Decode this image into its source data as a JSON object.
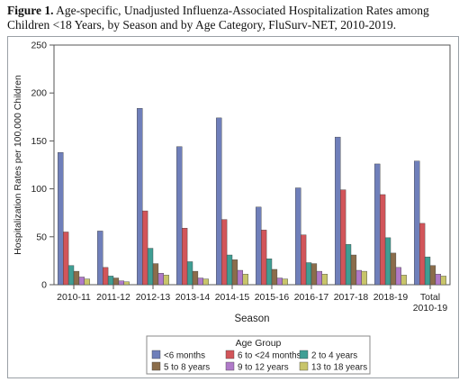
{
  "caption": {
    "label": "Figure 1.",
    "text": "Age-specific, Unadjusted Influenza-Associated Hospitalization Rates among Children <18 Years, by Season and by Age Category, FluSurv-NET, 2010-2019."
  },
  "chart_data": {
    "type": "bar",
    "xlabel": "Season",
    "ylabel": "Hospitalization Rates per 100,000 Children",
    "ylim": [
      0,
      250
    ],
    "yticks": [
      0,
      50,
      100,
      150,
      200,
      250
    ],
    "grid": false,
    "legend_title": "Age Group",
    "legend_position": "bottom",
    "categories": [
      "2010-11",
      "2011-12",
      "2012-13",
      "2013-14",
      "2014-15",
      "2015-16",
      "2016-17",
      "2017-18",
      "2018-19",
      "Total\n2010-19"
    ],
    "series": [
      {
        "name": "<6 months",
        "color": "#6f7fba",
        "values": [
          138,
          56,
          184,
          144,
          174,
          81,
          101,
          154,
          126,
          129
        ]
      },
      {
        "name": "6 to <24 months",
        "color": "#d2555a",
        "values": [
          55,
          18,
          77,
          59,
          68,
          57,
          52,
          99,
          94,
          64
        ]
      },
      {
        "name": "2 to 4 years",
        "color": "#3f9e94",
        "values": [
          20,
          9,
          38,
          24,
          31,
          27,
          23,
          42,
          49,
          29
        ]
      },
      {
        "name": "5 to 8 years",
        "color": "#8b6d4b",
        "values": [
          14,
          7,
          22,
          14,
          26,
          16,
          22,
          31,
          33,
          20
        ]
      },
      {
        "name": "9 to 12 years",
        "color": "#b07ac9",
        "values": [
          8,
          4,
          12,
          7,
          15,
          7,
          14,
          15,
          18,
          11
        ]
      },
      {
        "name": "13 to 18 years",
        "color": "#c8c56a",
        "values": [
          6,
          3,
          10,
          6,
          11,
          6,
          11,
          14,
          10,
          9
        ]
      }
    ]
  }
}
